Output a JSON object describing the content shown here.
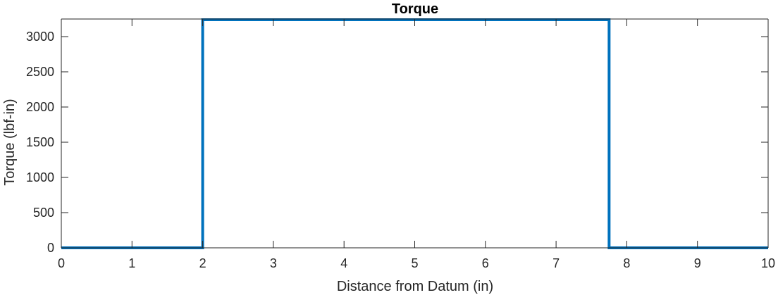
{
  "chart_data": {
    "type": "line",
    "title": "Torque",
    "xlabel": "Distance from Datum (in)",
    "ylabel": "Torque (lbf-in)",
    "xlim": [
      0,
      10
    ],
    "ylim": [
      0,
      3250
    ],
    "xticks": [
      0,
      1,
      2,
      3,
      4,
      5,
      6,
      7,
      8,
      9,
      10
    ],
    "yticks": [
      0,
      500,
      1000,
      1500,
      2000,
      2500,
      3000
    ],
    "xtick_labels": [
      "0",
      "1",
      "2",
      "3",
      "4",
      "5",
      "6",
      "7",
      "8",
      "9",
      "10"
    ],
    "ytick_labels": [
      "0",
      "500",
      "1000",
      "1500",
      "2000",
      "2500",
      "3000"
    ],
    "grid": false,
    "series": [
      {
        "color": "#0072BD",
        "x": [
          0,
          2,
          2,
          7.75,
          7.75,
          10
        ],
        "y": [
          0,
          0,
          3240,
          3240,
          0,
          0
        ]
      }
    ]
  }
}
